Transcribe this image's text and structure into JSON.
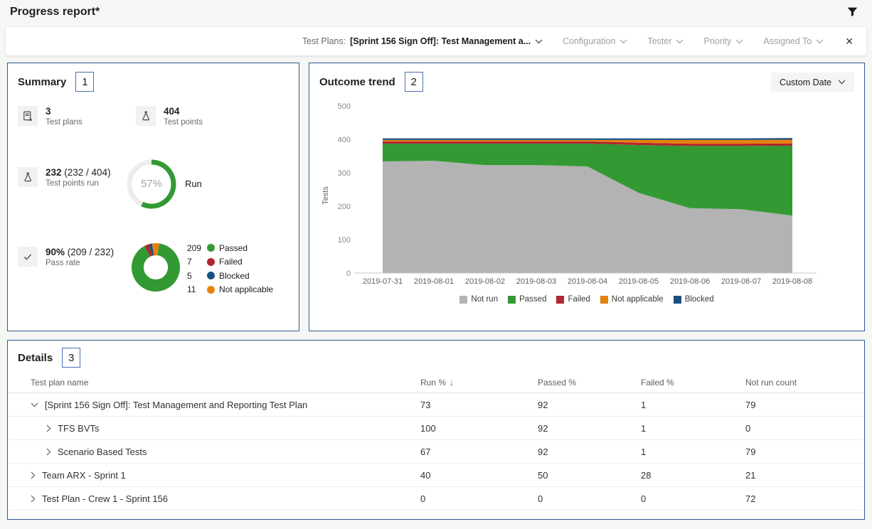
{
  "header": {
    "title": "Progress report*"
  },
  "filter_bar": {
    "scope_label": "Test Plans:",
    "scope_value": "[Sprint 156 Sign Off]: Test Management a...",
    "dropdowns": [
      {
        "label": "Configuration"
      },
      {
        "label": "Tester"
      },
      {
        "label": "Priority"
      },
      {
        "label": "Assigned To"
      }
    ],
    "close_glyph": "✕"
  },
  "summary": {
    "title": "Summary",
    "callout": "1",
    "stats": {
      "test_plans": {
        "value": "3",
        "label": "Test plans"
      },
      "test_points": {
        "value": "404",
        "label": "Test points"
      },
      "test_points_run": {
        "value": "232",
        "detail": " (232 / 404)",
        "label": "Test points run"
      },
      "pass_rate": {
        "value": "90%",
        "detail": " (209 / 232)",
        "label": "Pass rate"
      }
    },
    "run_ring": {
      "percent": 57,
      "display": "57%",
      "label": "Run"
    }
  },
  "outcome_trend": {
    "title": "Outcome trend",
    "callout": "2",
    "date_button": "Custom Date"
  },
  "details": {
    "title": "Details",
    "callout": "3",
    "columns": [
      "Test plan name",
      "Run %",
      "Passed %",
      "Failed %",
      "Not run count"
    ],
    "sort_indicator": "↓",
    "rows": [
      {
        "name": "[Sprint 156 Sign Off]: Test Management and Reporting Test Plan",
        "level": 0,
        "expanded": true,
        "run": "73",
        "passed": "92",
        "failed": "1",
        "not_run": "79"
      },
      {
        "name": "TFS BVTs",
        "level": 1,
        "expanded": false,
        "run": "100",
        "passed": "92",
        "failed": "1",
        "not_run": "0"
      },
      {
        "name": "Scenario Based Tests",
        "level": 1,
        "expanded": false,
        "run": "67",
        "passed": "92",
        "failed": "1",
        "not_run": "79"
      },
      {
        "name": "Team ARX - Sprint 1",
        "level": 0,
        "expanded": false,
        "run": "40",
        "passed": "50",
        "failed": "28",
        "not_run": "21"
      },
      {
        "name": "Test Plan - Crew 1 - Sprint 156",
        "level": 0,
        "expanded": false,
        "run": "0",
        "passed": "0",
        "failed": "0",
        "not_run": "72"
      }
    ]
  },
  "colors": {
    "passed": "#339933",
    "failed": "#b2262e",
    "blocked": "#1a5081",
    "not_applicable": "#e8810c",
    "not_run": "#b3b3b3",
    "card_border": "#2d5b90",
    "callout_border": "#4a6fb1",
    "ring_track": "#ededec"
  },
  "chart_data": [
    {
      "type": "pie",
      "name": "pass-rate-donut",
      "donut": true,
      "start_offset_deg": 8,
      "legend_position": "right",
      "slices": [
        {
          "label": "Passed",
          "value": 209,
          "color": "#339933"
        },
        {
          "label": "Failed",
          "value": 7,
          "color": "#b2262e"
        },
        {
          "label": "Blocked",
          "value": 5,
          "color": "#1a5081"
        },
        {
          "label": "Not applicable",
          "value": 11,
          "color": "#e8810c"
        }
      ]
    },
    {
      "type": "area",
      "name": "outcome-trend",
      "title": "Outcome trend",
      "stacked": true,
      "x": [
        "2019-07-31",
        "2019-08-01",
        "2019-08-02",
        "2019-08-03",
        "2019-08-04",
        "2019-08-05",
        "2019-08-06",
        "2019-08-07",
        "2019-08-08"
      ],
      "series": [
        {
          "name": "Not run",
          "color": "#b3b3b3",
          "values": [
            334,
            336,
            323,
            323,
            319,
            240,
            194,
            191,
            172
          ]
        },
        {
          "name": "Passed",
          "color": "#339933",
          "values": [
            53,
            51,
            64,
            64,
            68,
            143,
            186,
            189,
            209
          ]
        },
        {
          "name": "Failed",
          "color": "#b2262e",
          "values": [
            7,
            7,
            7,
            7,
            7,
            7,
            7,
            7,
            7
          ]
        },
        {
          "name": "Not applicable",
          "color": "#e8810c",
          "values": [
            4,
            4,
            4,
            4,
            4,
            8,
            11,
            11,
            11
          ]
        },
        {
          "name": "Blocked",
          "color": "#1a5081",
          "values": [
            5,
            5,
            5,
            5,
            5,
            5,
            5,
            5,
            5
          ]
        }
      ],
      "ylabel": "Tests",
      "ylim": [
        0,
        500
      ],
      "yticks": [
        0,
        100,
        200,
        300,
        400,
        500
      ],
      "grid": false,
      "legend_position": "bottom"
    }
  ]
}
